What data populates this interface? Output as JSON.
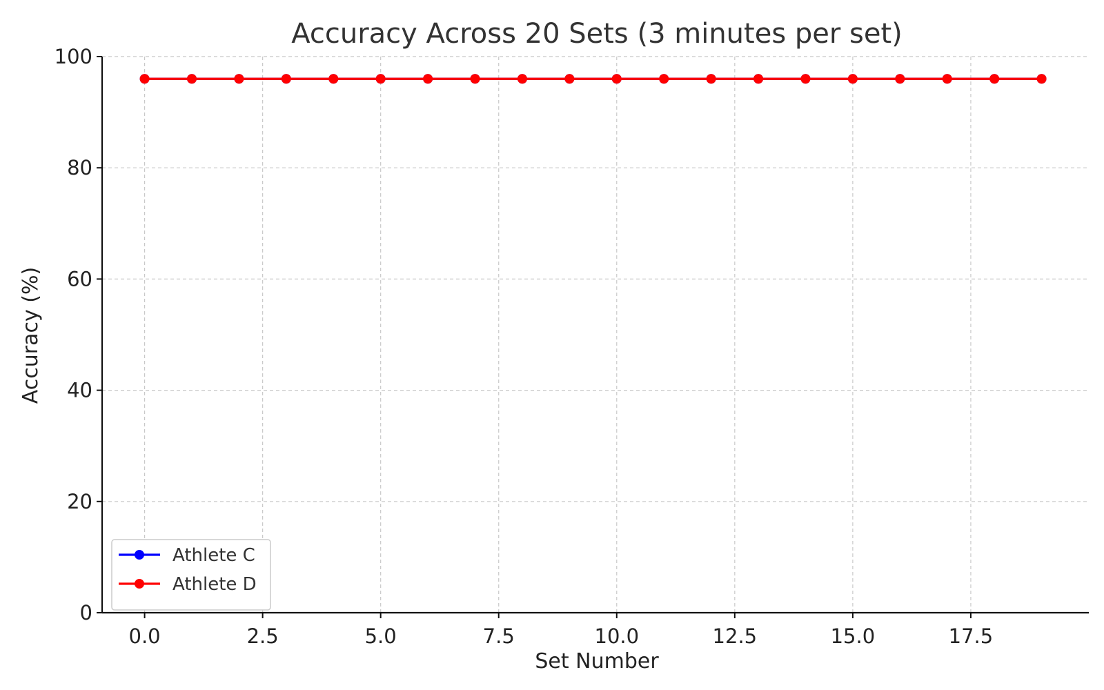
{
  "chart_data": {
    "type": "line",
    "title": "Accuracy Across 20 Sets (3 minutes per set)",
    "xlabel": "Set Number",
    "ylabel": "Accuracy (%)",
    "xlim": [
      -0.9,
      20
    ],
    "ylim": [
      0,
      100
    ],
    "xticks": [
      0,
      2.5,
      5,
      7.5,
      10,
      12.5,
      15,
      17.5
    ],
    "xtick_labels": [
      "0.0",
      "2.5",
      "5.0",
      "7.5",
      "10.0",
      "12.5",
      "15.0",
      "17.5"
    ],
    "yticks": [
      0,
      20,
      40,
      60,
      80,
      100
    ],
    "ytick_labels": [
      "0",
      "20",
      "40",
      "60",
      "80",
      "100"
    ],
    "grid": true,
    "legend_position": "bottom-left",
    "x": [
      0,
      1,
      2,
      3,
      4,
      5,
      6,
      7,
      8,
      9,
      10,
      11,
      12,
      13,
      14,
      15,
      16,
      17,
      18,
      19
    ],
    "series": [
      {
        "name": "Athlete C",
        "color": "#0000ff",
        "marker": "circle",
        "values": [
          96,
          96,
          96,
          96,
          96,
          96,
          96,
          96,
          96,
          96,
          96,
          96,
          96,
          96,
          96,
          96,
          96,
          96,
          96,
          96
        ]
      },
      {
        "name": "Athlete D",
        "color": "#ff0000",
        "marker": "circle",
        "values": [
          96,
          96,
          96,
          96,
          96,
          96,
          96,
          96,
          96,
          96,
          96,
          96,
          96,
          96,
          96,
          96,
          96,
          96,
          96,
          96
        ]
      }
    ]
  }
}
